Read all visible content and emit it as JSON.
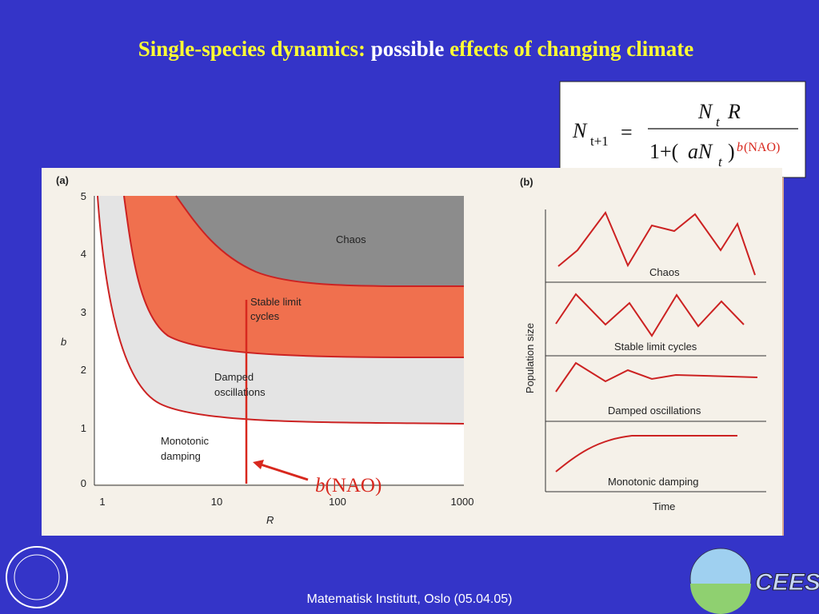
{
  "title": {
    "part1": "Single-species dynamics:",
    "part2": "possible",
    "part3": "effects of changing climate"
  },
  "formula": {
    "lhs": "N",
    "lhs_sub": "t+1",
    "equals": "=",
    "num_N": "N",
    "num_sub": "t",
    "num_R": "R",
    "den_pre": "1+(",
    "den_aN": "aN",
    "den_sub": "t",
    "den_post": ")",
    "exp_b": "b",
    "exp_rest": "(NAO)"
  },
  "panel_a": {
    "label": "(a)",
    "y_label": "b",
    "x_label": "R",
    "y_ticks": [
      "0",
      "1",
      "2",
      "3",
      "4",
      "5"
    ],
    "x_ticks": [
      "1",
      "10",
      "100",
      "1000"
    ],
    "regions": [
      "Chaos",
      "Stable limit",
      "cycles",
      "Damped",
      "oscillations",
      "Monotonic",
      "damping"
    ]
  },
  "annotation": {
    "b": "b",
    "rest": "(NAO)"
  },
  "panel_b": {
    "label": "(b)",
    "y_label": "Population size",
    "x_label": "Time",
    "rows": [
      "Chaos",
      "Stable limit cycles",
      "Damped oscillations",
      "Monotonic damping"
    ]
  },
  "footer": "Matematisk Institutt, Oslo (05.04.05)",
  "logo": "CEES"
}
